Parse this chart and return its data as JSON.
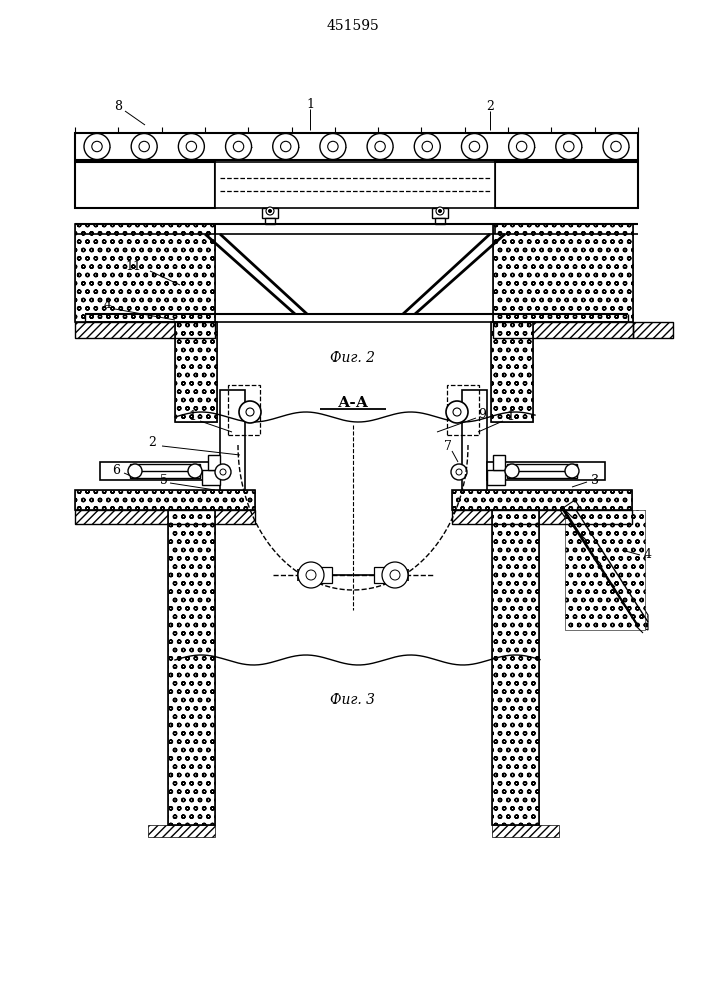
{
  "title": "451595",
  "fig2_label": "Фиг. 2",
  "fig3_label": "Фиг. 3",
  "section_label": "А-А",
  "bg_color": "#ffffff",
  "line_color": "#000000",
  "fig_width": 7.07,
  "fig_height": 10.0
}
